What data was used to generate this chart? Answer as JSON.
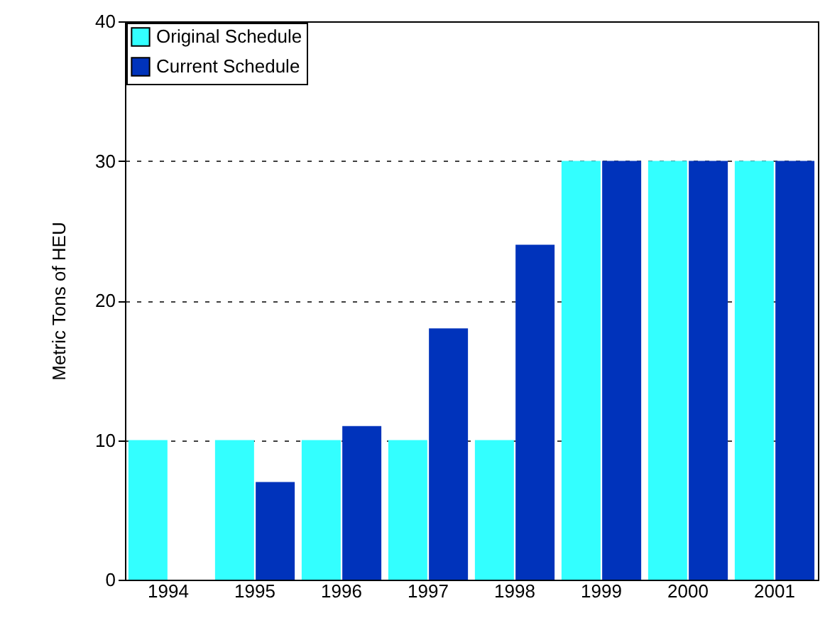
{
  "chart_data": {
    "type": "bar",
    "ylabel": "Metric Tons of HEU",
    "categories": [
      "1994",
      "1995",
      "1996",
      "1997",
      "1998",
      "1999",
      "2000",
      "2001"
    ],
    "series": [
      {
        "name": "Original Schedule",
        "color": "#33ffff",
        "values": [
          10,
          10,
          10,
          10,
          10,
          30,
          30,
          30
        ]
      },
      {
        "name": "Current Schedule",
        "color": "#0033bb",
        "values": [
          null,
          7,
          11,
          18,
          24,
          30,
          30,
          30
        ]
      }
    ],
    "ylim": [
      0,
      40
    ],
    "yticks": [
      0,
      10,
      20,
      30,
      40
    ],
    "grid": "y",
    "legend": "top left"
  }
}
